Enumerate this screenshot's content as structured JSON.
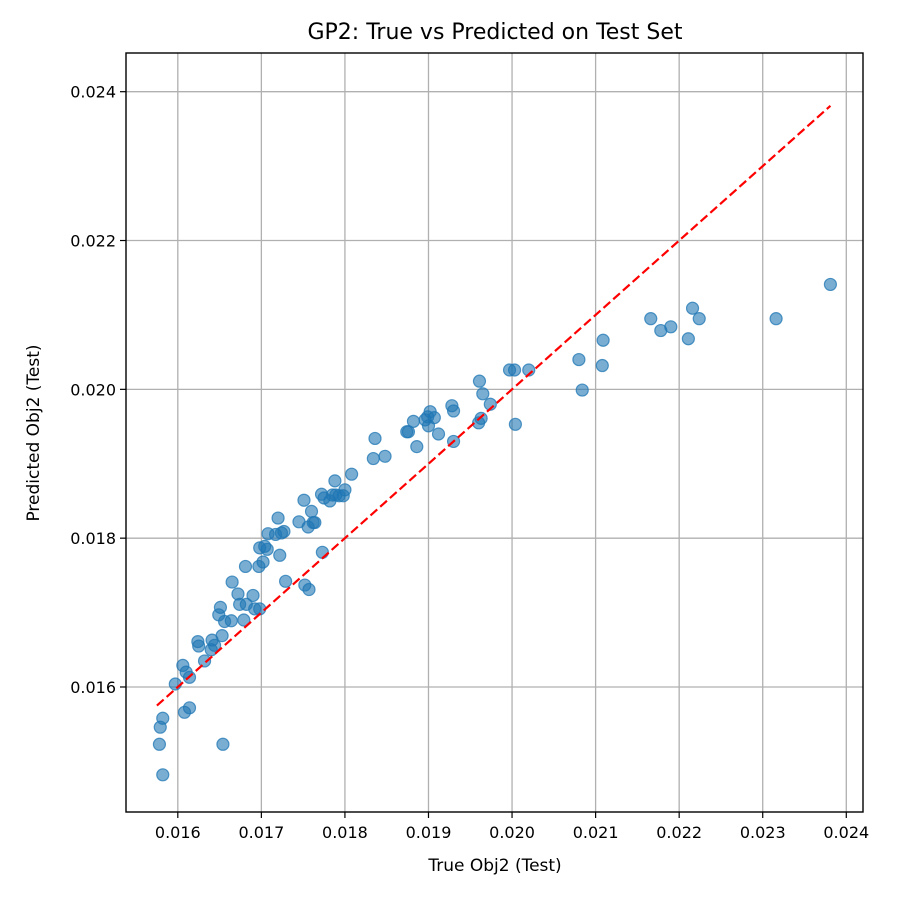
{
  "chart_data": {
    "type": "scatter",
    "title": "GP2: True vs Predicted on Test Set",
    "xlabel": "True Obj2 (Test)",
    "ylabel": "Predicted Obj2 (Test)",
    "xlim": [
      0.01538,
      0.0242
    ],
    "ylim": [
      0.01432,
      0.02452
    ],
    "xticks": [
      0.016,
      0.017,
      0.018,
      0.019,
      0.02,
      0.021,
      0.022,
      0.023,
      0.024
    ],
    "xtick_labels": [
      "0.016",
      "0.017",
      "0.018",
      "0.019",
      "0.020",
      "0.021",
      "0.022",
      "0.023",
      "0.024"
    ],
    "yticks": [
      0.016,
      0.018,
      0.02,
      0.022,
      0.024
    ],
    "ytick_labels": [
      "0.016",
      "0.018",
      "0.020",
      "0.022",
      "0.024"
    ],
    "grid": true,
    "reference_line": {
      "style": "dashed",
      "color": "#ff0000",
      "x": [
        0.01575,
        0.02381
      ],
      "y": [
        0.01575,
        0.02381
      ]
    },
    "point_color": "#1f77b4",
    "points": [
      [
        0.01582,
        0.01482
      ],
      [
        0.01578,
        0.01523
      ],
      [
        0.01579,
        0.01546
      ],
      [
        0.01582,
        0.01558
      ],
      [
        0.01597,
        0.01604
      ],
      [
        0.01606,
        0.01629
      ],
      [
        0.0161,
        0.0162
      ],
      [
        0.01614,
        0.01613
      ],
      [
        0.01608,
        0.01566
      ],
      [
        0.01614,
        0.01572
      ],
      [
        0.01624,
        0.01661
      ],
      [
        0.01625,
        0.01655
      ],
      [
        0.01632,
        0.01635
      ],
      [
        0.0164,
        0.0165
      ],
      [
        0.01641,
        0.01663
      ],
      [
        0.01644,
        0.01656
      ],
      [
        0.01649,
        0.01697
      ],
      [
        0.01651,
        0.01707
      ],
      [
        0.01653,
        0.01669
      ],
      [
        0.01656,
        0.01688
      ],
      [
        0.01665,
        0.01741
      ],
      [
        0.01664,
        0.01689
      ],
      [
        0.01672,
        0.01725
      ],
      [
        0.01674,
        0.01711
      ],
      [
        0.01679,
        0.0169
      ],
      [
        0.01681,
        0.01762
      ],
      [
        0.01682,
        0.01711
      ],
      [
        0.0169,
        0.01723
      ],
      [
        0.01692,
        0.01705
      ],
      [
        0.01698,
        0.01705
      ],
      [
        0.01697,
        0.01762
      ],
      [
        0.01698,
        0.01787
      ],
      [
        0.01702,
        0.01768
      ],
      [
        0.01704,
        0.01789
      ],
      [
        0.01707,
        0.01785
      ],
      [
        0.01708,
        0.01806
      ],
      [
        0.01717,
        0.01805
      ],
      [
        0.0172,
        0.01827
      ],
      [
        0.01722,
        0.01777
      ],
      [
        0.01724,
        0.01807
      ],
      [
        0.01727,
        0.01809
      ],
      [
        0.01729,
        0.01742
      ],
      [
        0.01745,
        0.01822
      ],
      [
        0.01751,
        0.01851
      ],
      [
        0.01752,
        0.01737
      ],
      [
        0.01756,
        0.01815
      ],
      [
        0.01757,
        0.01731
      ],
      [
        0.0176,
        0.01836
      ],
      [
        0.01762,
        0.01821
      ],
      [
        0.01764,
        0.01821
      ],
      [
        0.01772,
        0.01859
      ],
      [
        0.01773,
        0.01781
      ],
      [
        0.01775,
        0.01854
      ],
      [
        0.01782,
        0.0185
      ],
      [
        0.01785,
        0.01858
      ],
      [
        0.01788,
        0.01877
      ],
      [
        0.01789,
        0.01858
      ],
      [
        0.01793,
        0.01857
      ],
      [
        0.01798,
        0.01857
      ],
      [
        0.018,
        0.01865
      ],
      [
        0.01808,
        0.01886
      ],
      [
        0.01834,
        0.01907
      ],
      [
        0.01836,
        0.01934
      ],
      [
        0.01848,
        0.0191
      ],
      [
        0.01874,
        0.01943
      ],
      [
        0.01876,
        0.01943
      ],
      [
        0.01882,
        0.01957
      ],
      [
        0.01886,
        0.01923
      ],
      [
        0.01896,
        0.01959
      ],
      [
        0.019,
        0.01951
      ],
      [
        0.01899,
        0.01963
      ],
      [
        0.01902,
        0.0197
      ],
      [
        0.01907,
        0.01962
      ],
      [
        0.01912,
        0.0194
      ],
      [
        0.01928,
        0.01978
      ],
      [
        0.0193,
        0.01971
      ],
      [
        0.0193,
        0.0193
      ],
      [
        0.01961,
        0.02011
      ],
      [
        0.0196,
        0.01955
      ],
      [
        0.01963,
        0.01961
      ],
      [
        0.01965,
        0.01994
      ],
      [
        0.01974,
        0.0198
      ],
      [
        0.01997,
        0.02026
      ],
      [
        0.02003,
        0.02026
      ],
      [
        0.02004,
        0.01953
      ],
      [
        0.0202,
        0.02026
      ],
      [
        0.0208,
        0.0204
      ],
      [
        0.02084,
        0.01999
      ],
      [
        0.02108,
        0.02032
      ],
      [
        0.02109,
        0.02066
      ],
      [
        0.02166,
        0.02095
      ],
      [
        0.02178,
        0.02079
      ],
      [
        0.0219,
        0.02084
      ],
      [
        0.02211,
        0.02068
      ],
      [
        0.02216,
        0.02109
      ],
      [
        0.02224,
        0.02095
      ],
      [
        0.02316,
        0.02095
      ],
      [
        0.02381,
        0.02141
      ],
      [
        0.01654,
        0.01523
      ]
    ]
  }
}
